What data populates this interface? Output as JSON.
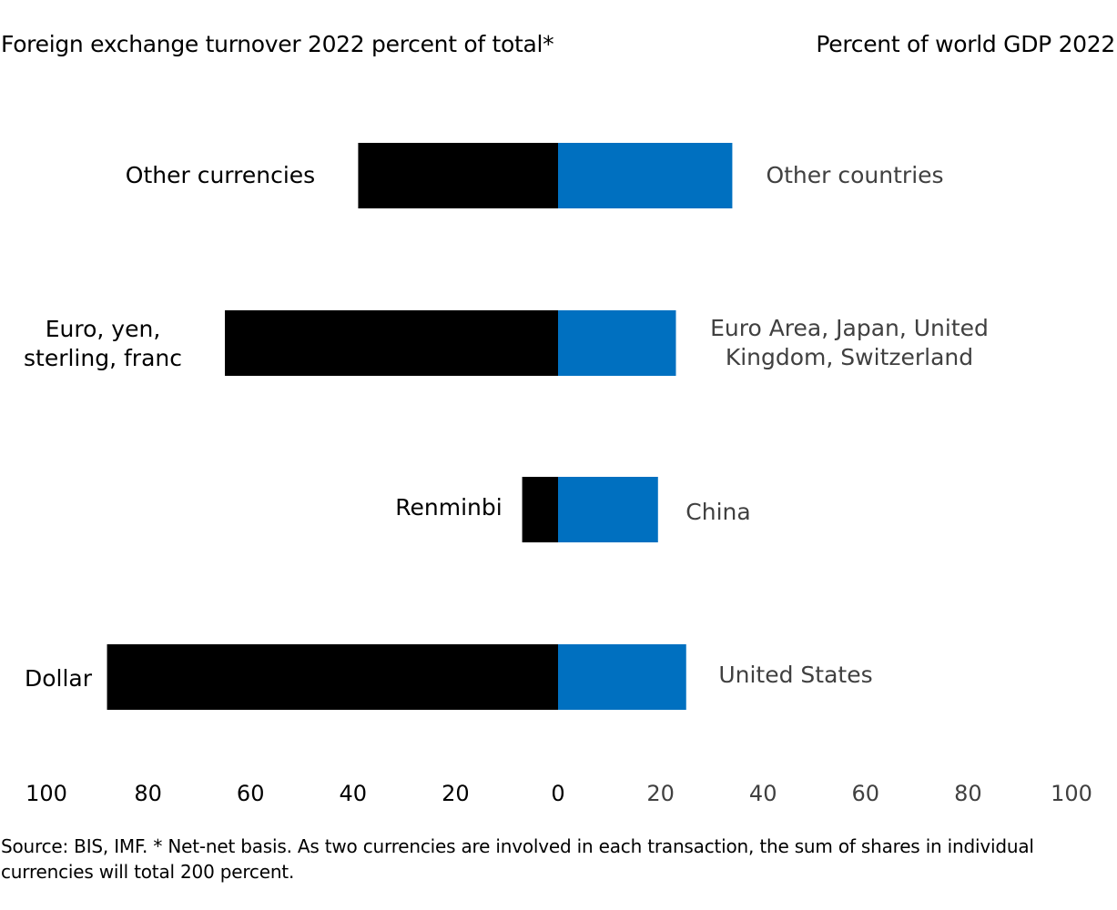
{
  "chart_data": {
    "type": "bar",
    "left_title": "Foreign exchange turnover 2022 percent of total*",
    "right_title": "Percent of world GDP 2022",
    "categories": [
      "Other currencies",
      "Euro, yen, sterling, franc",
      "Renminbi",
      "Dollar"
    ],
    "region_labels": [
      "Other countries",
      "Euro Area, Japan, United Kingdom, Switzerland",
      "China",
      "United States"
    ],
    "series": [
      {
        "name": "Foreign exchange turnover 2022 percent of total*",
        "values": [
          39,
          65,
          7,
          88
        ],
        "color": "#000000"
      },
      {
        "name": "Percent of world GDP 2022",
        "values": [
          34,
          23,
          19.5,
          25
        ],
        "color": "#0070c0"
      }
    ],
    "xlim": [
      -100,
      100
    ],
    "x_ticks": [
      {
        "label": "100",
        "value": -100
      },
      {
        "label": "80",
        "value": -80
      },
      {
        "label": "60",
        "value": -60
      },
      {
        "label": "40",
        "value": -40
      },
      {
        "label": "20",
        "value": -20
      },
      {
        "label": "0",
        "value": 0
      },
      {
        "label": "20",
        "value": 20
      },
      {
        "label": "40",
        "value": 40
      },
      {
        "label": "60",
        "value": 60
      },
      {
        "label": "80",
        "value": 80
      },
      {
        "label": "100",
        "value": 100
      }
    ],
    "grid": false,
    "source": "Source: BIS, IMF. * Net-net basis. As two currencies are involved in each transaction, the sum of shares in individual currencies will total 200 percent."
  }
}
